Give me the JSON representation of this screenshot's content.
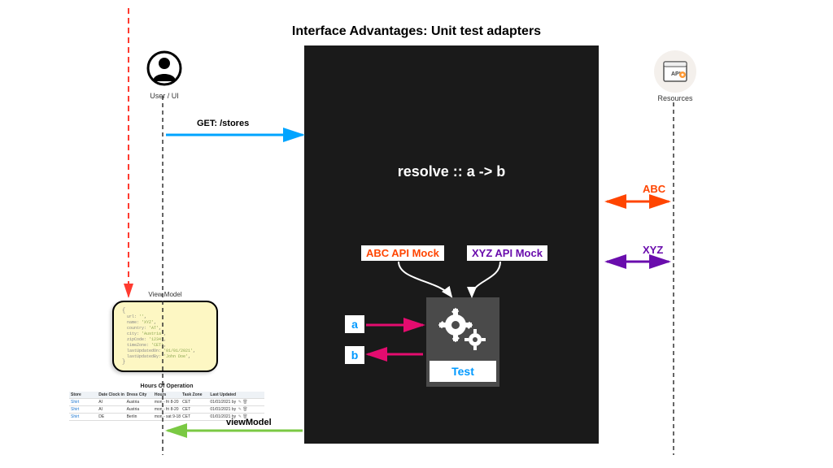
{
  "title": "Interface Advantages: Unit test adapters",
  "user": {
    "label": "User / UI"
  },
  "resources": {
    "label": "Resources"
  },
  "core": {
    "resolve": "resolve :: a -> b",
    "mocks": {
      "abc": "ABC API Mock",
      "xyz": "XYZ API Mock"
    },
    "a": "a",
    "b": "b",
    "test": "Test"
  },
  "arrows": {
    "get": "GET: /stores",
    "viewModel": "viewModel",
    "abc": "ABC",
    "xyz": "XYZ"
  },
  "colors": {
    "blue_arrow": "#00a4ff",
    "green_arrow": "#7ac943",
    "red_dash": "#ff3b30",
    "orange": "#ff4500",
    "purple": "#6a0dad",
    "magenta": "#e40c6f",
    "cyan_text": "#0099ff",
    "black_box": "#1a1a1a",
    "test_box": "#4a4a4a",
    "vm_bg": "#fdf7c3"
  },
  "viewModel": {
    "title": "View Model",
    "lines": [
      [
        "url:",
        "'<store>'"
      ],
      [
        "name:",
        "'XYZ'"
      ],
      [
        "country:",
        "'AT'"
      ],
      [
        "city:",
        "'Austria'"
      ],
      [
        "zipCode:",
        "'1234'"
      ],
      [
        "timeZone:",
        "'CET'"
      ],
      [
        "lastUpdatedOn:",
        "'01/01/2021'"
      ],
      [
        "lastUpdatedBy:",
        "'John Doe'"
      ]
    ]
  },
  "hours": {
    "title": "Hours Of Operation",
    "columns": [
      "Store",
      "Date Clock in",
      "Dress City",
      "Hours",
      "Task Zone",
      "Last Updated",
      ""
    ],
    "rows": [
      [
        "Shirt",
        "AI",
        "Austria",
        "mon - fri 8-20",
        "CET",
        "01/01/2021 by John Doe",
        "✎ 🗑"
      ],
      [
        "Shirt",
        "AI",
        "Austria",
        "mon - fri 8-20",
        "CET",
        "01/01/2021 by John Doe",
        "✎ 🗑"
      ],
      [
        "Shirt",
        "DE",
        "Berlin",
        "mon - sat 9-18",
        "CET",
        "01/01/2021 by John Doe",
        "✎ 🗑"
      ]
    ]
  }
}
